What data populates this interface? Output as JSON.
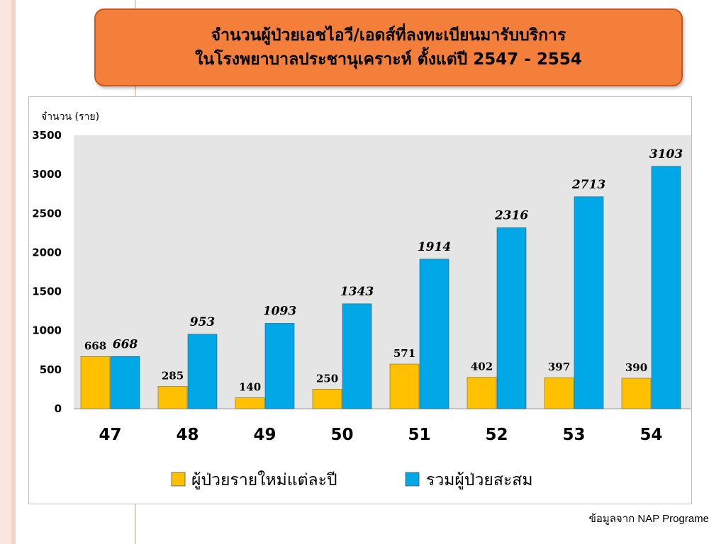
{
  "colors": {
    "title_bg": "#f47f3a",
    "title_border": "#c9561f",
    "plot_bg": "#e5e5e5",
    "new_series": "#ffc000",
    "cumulative_series": "#00a8e8",
    "left_stripe": "#f9e0d8"
  },
  "title": {
    "line1": "จำนวนผู้ป่วยเอชไอวี/เอดส์ที่ลงทะเบียนมารับบริการ",
    "line2": "ในโรงพยาบาลประชานุเคราะห์  ตั้งแต่ปี 2547 - 2554"
  },
  "chart_data": {
    "type": "bar",
    "ylabel": "จำนวน (ราย)",
    "categories": [
      "47",
      "48",
      "49",
      "50",
      "51",
      "52",
      "53",
      "54"
    ],
    "ylim": [
      0,
      3500
    ],
    "yticks": [
      "0",
      "500",
      "1000",
      "1500",
      "2000",
      "2500",
      "3000",
      "3500"
    ],
    "grid": false,
    "legend_position": "bottom",
    "series": [
      {
        "name": "ผู้ป่วยรายใหม่แต่ละปี",
        "color": "#ffc000",
        "values": [
          668,
          285,
          140,
          250,
          571,
          402,
          397,
          390
        ],
        "labels": [
          "668",
          "285",
          "140",
          "250",
          "571",
          "402",
          "397",
          "390"
        ]
      },
      {
        "name": "รวมผู้ป่วยสะสม",
        "color": "#00a8e8",
        "values": [
          668,
          953,
          1093,
          1343,
          1914,
          2316,
          2713,
          3103
        ],
        "labels": [
          "668",
          "953",
          "1093",
          "1343",
          "1914",
          "2316",
          "2713",
          "3103"
        ]
      }
    ]
  },
  "source_note": "ข้อมูลจาก NAP Programe"
}
